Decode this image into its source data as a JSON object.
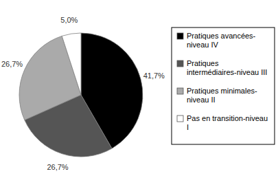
{
  "chart_data": {
    "type": "pie",
    "categories": [
      "Pratiques avancées-niveau IV",
      "Pratiques intermédiaires-niveau III",
      "Pratiques minimales-niveau II",
      "Pas en transition-niveau I"
    ],
    "values": [
      41.7,
      26.7,
      26.7,
      5.0
    ],
    "value_labels": [
      "41,7%",
      "26,7%",
      "26,7%",
      "5,0%"
    ],
    "colors": [
      "#000000",
      "#555555",
      "#aaaaaa",
      "#ffffff"
    ],
    "data_labels": true,
    "legend": "right"
  }
}
